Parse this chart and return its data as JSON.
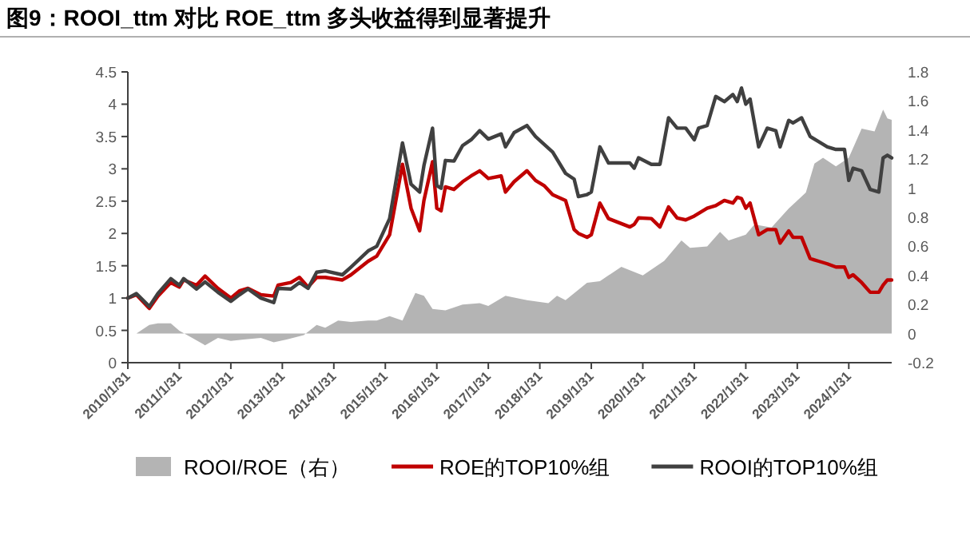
{
  "chart_data": {
    "type": "line",
    "title": "图9：ROOI_ttm 对比 ROE_ttm 多头收益得到显著提升",
    "legend": "bottom",
    "xlim": [
      "2010-01",
      "2024-11"
    ],
    "xticks": [
      {
        "value": "2010-01",
        "label": "2010/1/31"
      },
      {
        "value": "2011-01",
        "label": "2011/1/31"
      },
      {
        "value": "2012-01",
        "label": "2012/1/31"
      },
      {
        "value": "2013-01",
        "label": "2013/1/31"
      },
      {
        "value": "2014-01",
        "label": "2014/1/31"
      },
      {
        "value": "2015-01",
        "label": "2015/1/31"
      },
      {
        "value": "2016-01",
        "label": "2016/1/31"
      },
      {
        "value": "2017-01",
        "label": "2017/1/31"
      },
      {
        "value": "2018-01",
        "label": "2018/1/31"
      },
      {
        "value": "2019-01",
        "label": "2019/1/31"
      },
      {
        "value": "2020-01",
        "label": "2020/1/31"
      },
      {
        "value": "2021-01",
        "label": "2021/1/31"
      },
      {
        "value": "2022-01",
        "label": "2022/1/31"
      },
      {
        "value": "2023-01",
        "label": "2023/1/31"
      },
      {
        "value": "2024-01",
        "label": "2024/1/31"
      }
    ],
    "ylim": [
      0,
      4.5
    ],
    "yticks": [
      0,
      0.5,
      1,
      1.5,
      2,
      2.5,
      3,
      3.5,
      4,
      4.5
    ],
    "y2lim": [
      -0.2,
      1.8
    ],
    "y2ticks": [
      -0.2,
      0,
      0.2,
      0.4,
      0.6,
      0.8,
      1,
      1.2,
      1.4,
      1.6,
      1.8
    ],
    "x": [
      "2010-01",
      "2010-03",
      "2010-06",
      "2010-08",
      "2010-11",
      "2011-01",
      "2011-02",
      "2011-05",
      "2011-07",
      "2011-10",
      "2012-01",
      "2012-03",
      "2012-05",
      "2012-08",
      "2012-11",
      "2012-12",
      "2013-03",
      "2013-05",
      "2013-07",
      "2013-09",
      "2013-11",
      "2014-03",
      "2014-05",
      "2014-09",
      "2014-11",
      "2015-02",
      "2015-05",
      "2015-07",
      "2015-09",
      "2015-10",
      "2015-12",
      "2016-01",
      "2016-02",
      "2016-03",
      "2016-05",
      "2016-07",
      "2016-09",
      "2016-11",
      "2017-01",
      "2017-04",
      "2017-05",
      "2017-07",
      "2017-10",
      "2017-12",
      "2018-02",
      "2018-04",
      "2018-07",
      "2018-09",
      "2018-10",
      "2018-12",
      "2019-01",
      "2019-03",
      "2019-05",
      "2019-10",
      "2019-11",
      "2019-12",
      "2020-03",
      "2020-05",
      "2020-07",
      "2020-09",
      "2020-11",
      "2021-01",
      "2021-02",
      "2021-04",
      "2021-06",
      "2021-08",
      "2021-10",
      "2021-11",
      "2021-12",
      "2022-01",
      "2022-02",
      "2022-04",
      "2022-06",
      "2022-08",
      "2022-09",
      "2022-11",
      "2022-12",
      "2023-02",
      "2023-04",
      "2023-06",
      "2023-08",
      "2023-10",
      "2023-12",
      "2024-01",
      "2024-02",
      "2024-04",
      "2024-06",
      "2024-08",
      "2024-09",
      "2024-10",
      "2024-11"
    ],
    "series": [
      {
        "name": "ROOI/ROE（右）",
        "type": "area",
        "axis": "y2",
        "color": "#b4b4b4",
        "x": [
          "2010-01",
          "2010-03",
          "2010-06",
          "2010-08",
          "2010-11",
          "2011-01",
          "2011-04",
          "2011-07",
          "2011-10",
          "2012-01",
          "2012-04",
          "2012-08",
          "2012-11",
          "2013-02",
          "2013-06",
          "2013-09",
          "2013-11",
          "2014-02",
          "2014-05",
          "2014-09",
          "2014-11",
          "2015-02",
          "2015-05",
          "2015-08",
          "2015-10",
          "2015-12",
          "2016-03",
          "2016-07",
          "2016-11",
          "2017-01",
          "2017-05",
          "2017-10",
          "2018-03",
          "2018-05",
          "2018-07",
          "2018-12",
          "2019-03",
          "2019-08",
          "2020-01",
          "2020-06",
          "2020-10",
          "2020-12",
          "2021-04",
          "2021-07",
          "2021-09",
          "2022-01",
          "2022-03",
          "2022-07",
          "2022-11",
          "2023-03",
          "2023-05",
          "2023-07",
          "2023-10",
          "2024-01",
          "2024-04",
          "2024-07",
          "2024-09",
          "2024-10",
          "2024-11"
        ],
        "values": [
          0,
          0,
          0.06,
          0.07,
          0.07,
          0.02,
          -0.03,
          -0.08,
          -0.03,
          -0.05,
          -0.04,
          -0.03,
          -0.06,
          -0.04,
          -0.01,
          0.06,
          0.04,
          0.09,
          0.08,
          0.09,
          0.09,
          0.12,
          0.09,
          0.28,
          0.26,
          0.17,
          0.16,
          0.2,
          0.21,
          0.19,
          0.26,
          0.23,
          0.21,
          0.26,
          0.23,
          0.35,
          0.36,
          0.46,
          0.4,
          0.5,
          0.64,
          0.59,
          0.6,
          0.7,
          0.64,
          0.68,
          0.75,
          0.73,
          0.86,
          0.97,
          1.17,
          1.21,
          1.15,
          1.21,
          1.41,
          1.39,
          1.54,
          1.48,
          1.47
        ]
      },
      {
        "name": "ROE的TOP10%组",
        "color": "#c00000",
        "values": [
          1.0,
          1.05,
          0.84,
          1.03,
          1.24,
          1.17,
          1.28,
          1.2,
          1.34,
          1.15,
          1.0,
          1.11,
          1.15,
          1.05,
          1.03,
          1.2,
          1.24,
          1.32,
          1.17,
          1.32,
          1.32,
          1.28,
          1.36,
          1.57,
          1.65,
          1.98,
          3.07,
          2.39,
          2.04,
          2.51,
          3.11,
          2.39,
          2.35,
          2.72,
          2.68,
          2.8,
          2.89,
          2.97,
          2.85,
          2.89,
          2.64,
          2.8,
          2.97,
          2.82,
          2.74,
          2.6,
          2.51,
          2.06,
          2.0,
          1.94,
          1.98,
          2.47,
          2.23,
          2.1,
          2.14,
          2.24,
          2.23,
          2.1,
          2.41,
          2.24,
          2.21,
          2.27,
          2.31,
          2.39,
          2.43,
          2.51,
          2.47,
          2.56,
          2.54,
          2.39,
          2.47,
          1.98,
          2.06,
          2.06,
          1.85,
          2.04,
          1.94,
          1.94,
          1.61,
          1.57,
          1.53,
          1.48,
          1.48,
          1.32,
          1.36,
          1.24,
          1.09,
          1.09,
          1.2,
          1.28,
          1.28
        ]
      },
      {
        "name": "ROOI的TOP10%组",
        "color": "#404040",
        "values": [
          1.0,
          1.07,
          0.87,
          1.07,
          1.3,
          1.2,
          1.3,
          1.14,
          1.25,
          1.09,
          0.95,
          1.05,
          1.14,
          1.0,
          0.93,
          1.15,
          1.14,
          1.24,
          1.15,
          1.4,
          1.42,
          1.36,
          1.48,
          1.73,
          1.8,
          2.23,
          3.4,
          2.76,
          2.64,
          3.05,
          3.63,
          2.74,
          2.7,
          3.13,
          3.12,
          3.36,
          3.45,
          3.59,
          3.46,
          3.54,
          3.34,
          3.56,
          3.67,
          3.5,
          3.38,
          3.26,
          2.93,
          2.84,
          2.57,
          2.6,
          2.64,
          3.34,
          3.09,
          3.09,
          3.01,
          3.17,
          3.07,
          3.07,
          3.79,
          3.63,
          3.63,
          3.45,
          3.63,
          3.67,
          4.12,
          4.04,
          4.15,
          4.04,
          4.25,
          4.0,
          4.08,
          3.34,
          3.63,
          3.59,
          3.34,
          3.75,
          3.71,
          3.79,
          3.5,
          3.42,
          3.34,
          3.3,
          3.3,
          2.82,
          3.01,
          2.97,
          2.68,
          2.64,
          3.17,
          3.21,
          3.17
        ]
      }
    ]
  }
}
